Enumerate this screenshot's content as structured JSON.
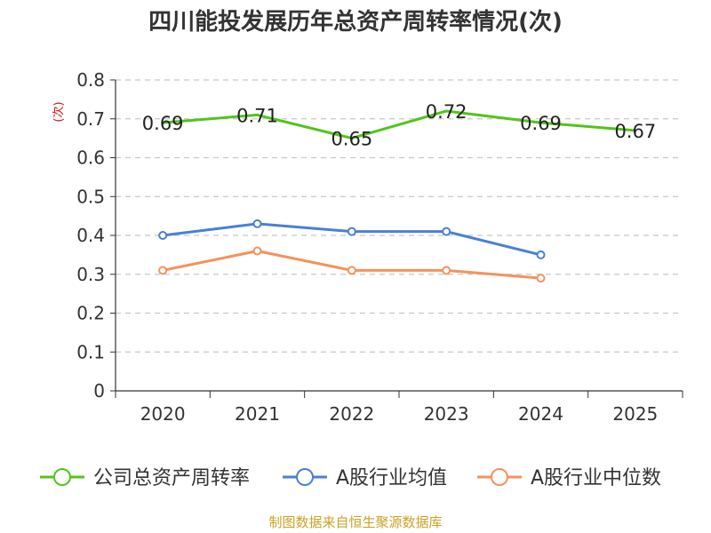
{
  "chart_data": {
    "type": "line",
    "title": "四川能投发展历年总资产周转率情况(次)",
    "ylabel": "(次)",
    "xlabel": "",
    "categories": [
      "2020",
      "2021",
      "2022",
      "2023",
      "2024",
      "2025"
    ],
    "y_ticks": [
      "0",
      "0.1",
      "0.2",
      "0.3",
      "0.4",
      "0.5",
      "0.6",
      "0.7",
      "0.8"
    ],
    "ylim": [
      0,
      0.8
    ],
    "grid": true,
    "legend_position": "bottom",
    "series": [
      {
        "name": "公司总资产周转率",
        "color": "#52c41a",
        "values": [
          0.69,
          0.71,
          0.65,
          0.72,
          0.69,
          0.67
        ],
        "labels": [
          "0.69",
          "0.71",
          "0.65",
          "0.72",
          "0.69",
          "0.67"
        ],
        "show_labels": true,
        "show_markers": false
      },
      {
        "name": "A股行业均值",
        "color": "#4a7fd6",
        "values": [
          0.4,
          0.43,
          0.41,
          0.41,
          0.35,
          null
        ],
        "show_labels": false,
        "show_markers": true
      },
      {
        "name": "A股行业中位数",
        "color": "#f5915c",
        "values": [
          0.31,
          0.36,
          0.31,
          0.31,
          0.29,
          null
        ],
        "show_labels": false,
        "show_markers": true
      }
    ]
  },
  "source": "制图数据来自恒生聚源数据库"
}
